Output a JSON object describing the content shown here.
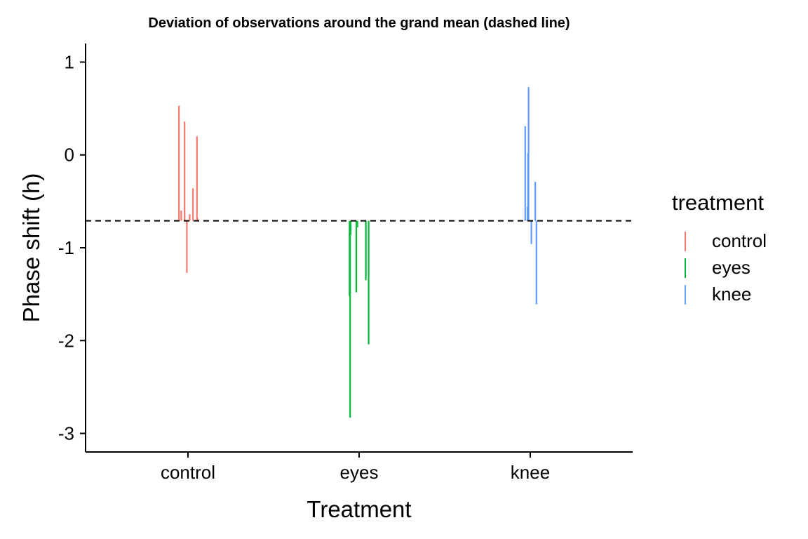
{
  "chart_data": {
    "type": "segment",
    "title": "Deviation of observations around the grand mean (dashed line)",
    "xlabel": "Treatment",
    "ylabel": "Phase shift (h)",
    "categories": [
      "control",
      "eyes",
      "knee"
    ],
    "ylim": [
      -3.2,
      1.2
    ],
    "yticks": [
      1,
      0,
      -1,
      -2,
      -3
    ],
    "ytick_labels": [
      "1",
      "0",
      "-1",
      "-2",
      "-3"
    ],
    "grand_mean": -0.71,
    "grid": false,
    "legend": {
      "title": "treatment",
      "position": "right"
    },
    "colors": {
      "control": "#F8766D",
      "eyes": "#00BA38",
      "knee": "#619CFF"
    },
    "series": [
      {
        "name": "control",
        "points": [
          {
            "x": -0.16,
            "y": 0.53
          },
          {
            "x": -0.12,
            "y": -0.6
          },
          {
            "x": -0.06,
            "y": 0.36
          },
          {
            "x": -0.02,
            "y": -1.27
          },
          {
            "x": 0.03,
            "y": -0.64
          },
          {
            "x": 0.09,
            "y": -0.36
          },
          {
            "x": 0.16,
            "y": 0.2
          },
          {
            "x": 0.17,
            "y": -0.68
          }
        ]
      },
      {
        "name": "eyes",
        "points": [
          {
            "x": -0.17,
            "y": -1.52
          },
          {
            "x": -0.16,
            "y": -2.83
          },
          {
            "x": -0.15,
            "y": -0.86
          },
          {
            "x": -0.05,
            "y": -1.48
          },
          {
            "x": -0.03,
            "y": -0.78
          },
          {
            "x": 0.12,
            "y": -1.35
          },
          {
            "x": 0.17,
            "y": -2.04
          }
        ]
      },
      {
        "name": "knee",
        "points": [
          {
            "x": -0.09,
            "y": 0.31
          },
          {
            "x": -0.05,
            "y": -0.56
          },
          {
            "x": -0.04,
            "y": 0.02
          },
          {
            "x": -0.03,
            "y": 0.73
          },
          {
            "x": 0.02,
            "y": -0.96
          },
          {
            "x": 0.09,
            "y": -0.29
          },
          {
            "x": 0.11,
            "y": -1.61
          }
        ]
      }
    ]
  }
}
